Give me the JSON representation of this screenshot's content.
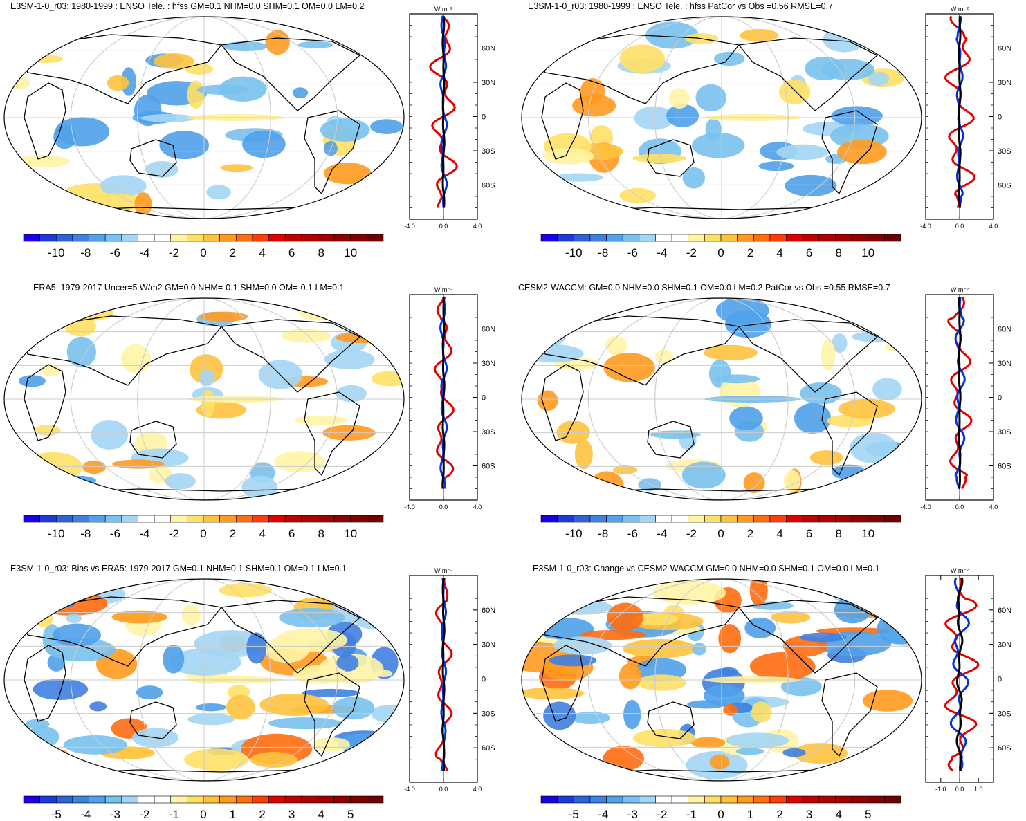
{
  "colors": {
    "zonal_model": "#e00000",
    "zonal_obs": "#0033dd",
    "zonal_diff": "#000000",
    "ocean_bg": "#ffffff",
    "grid": "#cccccc"
  },
  "panels": [
    {
      "title": "E3SM-1-0_r03: 1980-1999 : ENSO Tele. : hfss GM=0.1 NHM=0.0 SHM=0.1 OM=0.0 LM=0.2",
      "cb_labels": [
        "-10",
        "-8",
        "-6",
        "-4",
        "-2",
        "0",
        "2",
        "4",
        "6",
        "8",
        "10"
      ],
      "zonal_units": "W m⁻²",
      "zonal_xticks": [
        "-4.0",
        "0.0",
        "4.0"
      ],
      "zonal_yticks": [
        "60N",
        "30N",
        "0",
        "30S",
        "60S"
      ],
      "zonal_range": [
        -4,
        4
      ],
      "zonal_amp": [
        1.6,
        0.4,
        0.1
      ]
    },
    {
      "title": "E3SM-1-0_r03: 1980-1999 : ENSO Tele. : hfss PatCor vs Obs =0.56 RMSE=0.7",
      "cb_labels": [
        "-10",
        "-8",
        "-6",
        "-4",
        "-2",
        "0",
        "2",
        "4",
        "6",
        "8",
        "10"
      ],
      "zonal_units": "W m⁻²",
      "zonal_xticks": [
        "-4.0",
        "0.0",
        "4.0"
      ],
      "zonal_yticks": [
        "60N",
        "30N",
        "0",
        "30S",
        "60S"
      ],
      "zonal_range": [
        -4,
        4
      ],
      "zonal_amp": [
        1.8,
        0.4,
        0.1
      ]
    },
    {
      "title": "ERA5: 1979-2017 Uncer=5 W/m2 GM=0.0 NHM=-0.1 SHM=0.0 OM=-0.1 LM=0.1",
      "cb_labels": [
        "-10",
        "-8",
        "-6",
        "-4",
        "-2",
        "0",
        "2",
        "4",
        "6",
        "8",
        "10"
      ],
      "zonal_units": "W m⁻²",
      "zonal_xticks": [
        "-4.0",
        "0.0",
        "4.0"
      ],
      "zonal_yticks": [
        "60N",
        "30N",
        "0",
        "30S",
        "60S"
      ],
      "zonal_range": [
        -4,
        4
      ],
      "zonal_amp": [
        1.2,
        0.4,
        0.1
      ]
    },
    {
      "title": "CESM2-WACCM: GM=0.0 NHM=0.0 SHM=0.1 OM=0.0 LM=0.2 PatCor vs Obs =0.55 RMSE=0.7",
      "cb_labels": [
        "-10",
        "-8",
        "-6",
        "-4",
        "-2",
        "0",
        "2",
        "4",
        "6",
        "8",
        "10"
      ],
      "zonal_units": "W m⁻²",
      "zonal_xticks": [
        "-4.0",
        "0.0",
        "4.0"
      ],
      "zonal_yticks": [
        "60N",
        "30N",
        "0",
        "30S",
        "60S"
      ],
      "zonal_range": [
        -4,
        4
      ],
      "zonal_amp": [
        1.4,
        0.6,
        0.1
      ]
    },
    {
      "title": "E3SM-1-0_r03: Bias vs ERA5: 1979-2017 GM=0.1 NHM=0.1 SHM=0.1 OM=0.1 LM=0.1",
      "cb_labels": [
        "-5",
        "-4",
        "-3",
        "-2",
        "-1",
        "0",
        "1",
        "2",
        "3",
        "4",
        "5"
      ],
      "zonal_units": "W m⁻²",
      "zonal_xticks": [
        "-4.0",
        "0.0",
        "4.0"
      ],
      "zonal_yticks": [
        "60N",
        "30N",
        "0",
        "30S",
        "60S"
      ],
      "zonal_range": [
        -4,
        4
      ],
      "zonal_amp": [
        1.0,
        0.3,
        0.1
      ]
    },
    {
      "title": "E3SM-1-0_r03: Change vs CESM2-WACCM GM=0.0 NHM=0.0 SHM=0.1 OM=0.0 LM=0.1",
      "cb_labels": [
        "-5",
        "-4",
        "-3",
        "-2",
        "-1",
        "0",
        "1",
        "2",
        "3",
        "4",
        "5"
      ],
      "zonal_units": "W m⁻²",
      "zonal_xticks": [
        "-1.0",
        "0.0",
        "1.0"
      ],
      "zonal_yticks": [
        "60N",
        "30N",
        "0",
        "30S",
        "60S"
      ],
      "zonal_range": [
        -1.8,
        1.8
      ],
      "zonal_amp": [
        1.0,
        0.5,
        0.15
      ]
    }
  ]
}
